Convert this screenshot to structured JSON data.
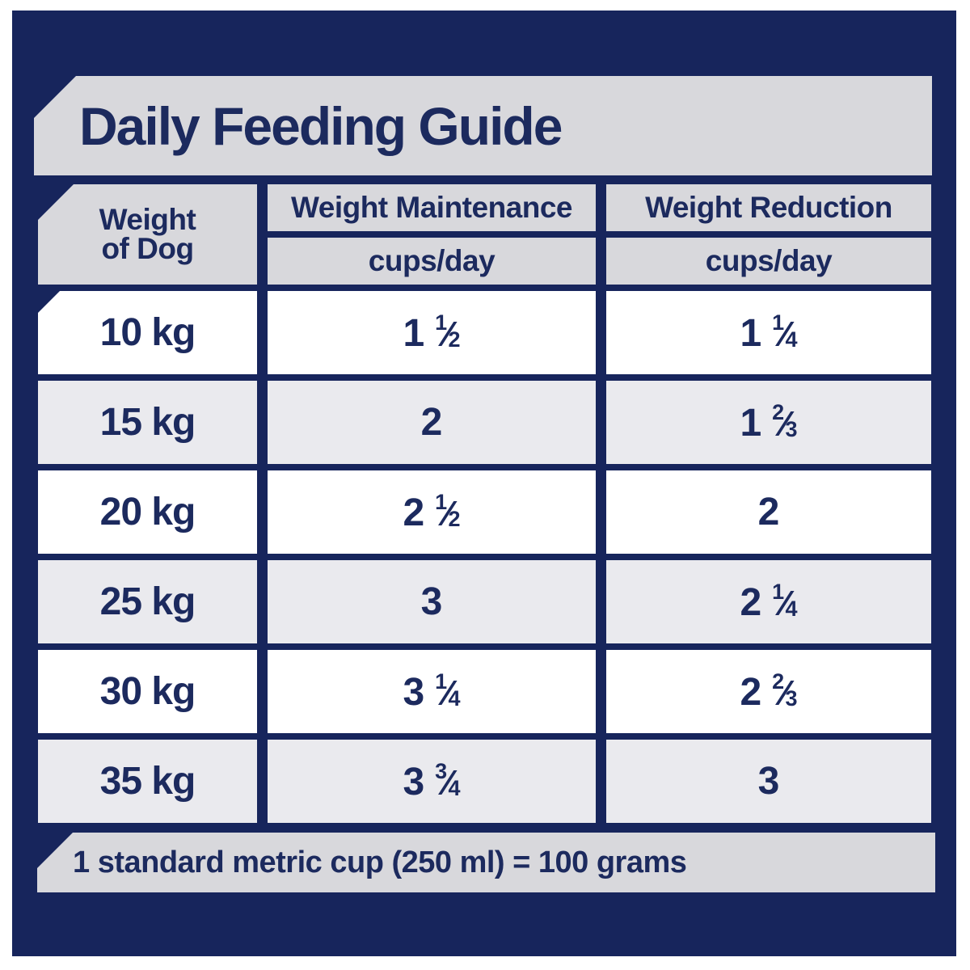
{
  "colors": {
    "navy": "#17255c",
    "text_navy": "#1c2a5e",
    "banner_gray": "#d8d8dc",
    "row_alt_gray": "#eaeaee",
    "row_white": "#ffffff"
  },
  "title": "Daily Feeding Guide",
  "table": {
    "weight_header": {
      "line1": "Weight",
      "line2": "of Dog"
    },
    "columns": [
      {
        "label": "Weight Maintenance",
        "sublabel": "cups/day"
      },
      {
        "label": "Weight Reduction",
        "sublabel": "cups/day"
      }
    ],
    "rows": [
      {
        "weight": "10 kg",
        "maintenance": {
          "whole": "1",
          "num": "1",
          "den": "2"
        },
        "reduction": {
          "whole": "1",
          "num": "1",
          "den": "4"
        }
      },
      {
        "weight": "15 kg",
        "maintenance": {
          "whole": "2"
        },
        "reduction": {
          "whole": "1",
          "num": "2",
          "den": "3"
        }
      },
      {
        "weight": "20 kg",
        "maintenance": {
          "whole": "2",
          "num": "1",
          "den": "2"
        },
        "reduction": {
          "whole": "2"
        }
      },
      {
        "weight": "25 kg",
        "maintenance": {
          "whole": "3"
        },
        "reduction": {
          "whole": "2",
          "num": "1",
          "den": "4"
        }
      },
      {
        "weight": "30 kg",
        "maintenance": {
          "whole": "3",
          "num": "1",
          "den": "4"
        },
        "reduction": {
          "whole": "2",
          "num": "2",
          "den": "3"
        }
      },
      {
        "weight": "35 kg",
        "maintenance": {
          "whole": "3",
          "num": "3",
          "den": "4"
        },
        "reduction": {
          "whole": "3"
        }
      }
    ]
  },
  "footer": {
    "note": "1 standard metric cup (250 ml) = 100 grams"
  }
}
